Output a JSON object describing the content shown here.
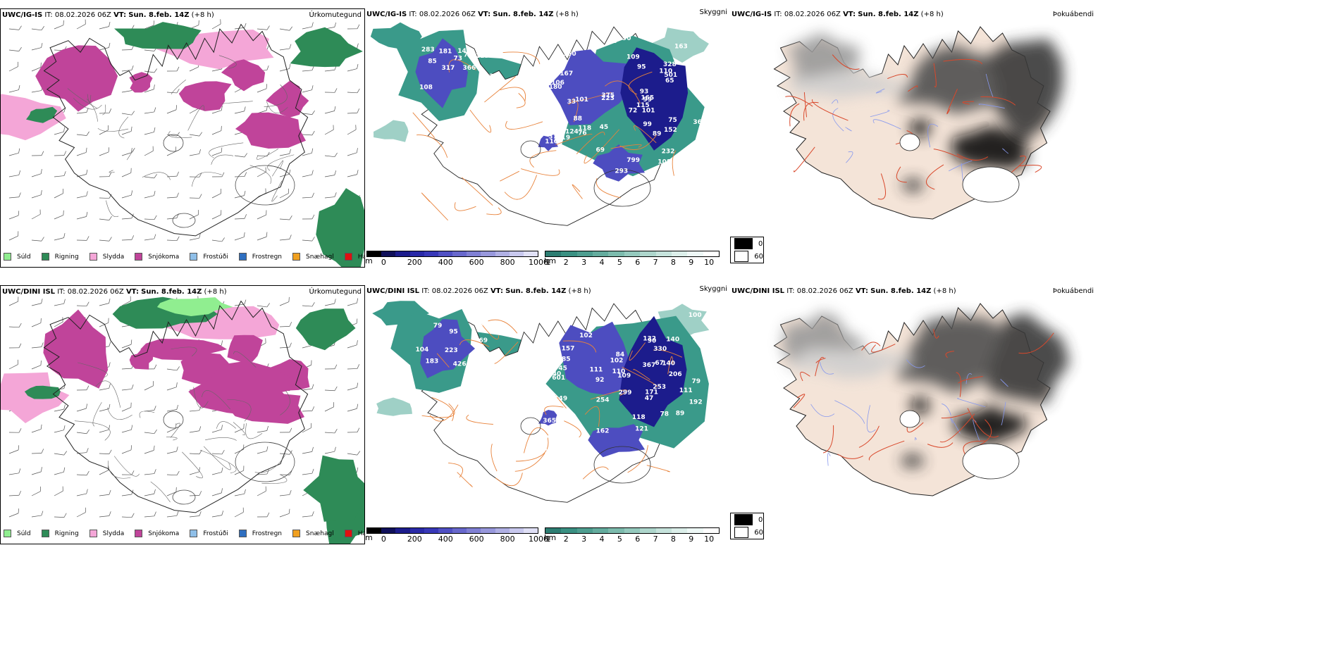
{
  "rows": [
    {
      "precip": {
        "model": "UWC/IG-IS",
        "it_label": "IT:",
        "it_value": "08.02.2026 06Z",
        "vt_label": "VT:",
        "vt_value": "Sun. 8.feb. 14Z",
        "lead": "(+8 h)",
        "right_title": "Úrkomutegund"
      },
      "visibility": {
        "model": "UWC/IG-IS",
        "it_label": "IT:",
        "it_value": "08.02.2026 06Z",
        "vt_label": "VT:",
        "vt_value": "Sun. 8.feb. 14Z",
        "lead": "(+8 h)",
        "right_title": "Skyggni"
      },
      "fog": {
        "model": "UWC/IG-IS",
        "it_label": "IT:",
        "it_value": "08.02.2026 06Z",
        "vt_label": "VT:",
        "vt_value": "Sun. 8.feb. 14Z",
        "lead": "(+8 h)",
        "right_title": "Þokuábendi"
      },
      "labels": [
        "108",
        "143",
        "85",
        "366",
        "181",
        "73",
        "125",
        "317",
        "74",
        "51",
        "283",
        "322",
        "88",
        "232",
        "165",
        "110",
        "152",
        "180",
        "65",
        "86",
        "99",
        "89",
        "106",
        "101",
        "350",
        "52",
        "375",
        "90",
        "108",
        "118",
        "373",
        "69",
        "72",
        "33",
        "65",
        "93",
        "124",
        "369",
        "75",
        "45",
        "109",
        "223",
        "119",
        "293",
        "501",
        "328",
        "419",
        "101",
        "115",
        "99",
        "167",
        "125",
        "799",
        "163",
        "76",
        "132",
        "95",
        "110"
      ]
    },
    {
      "precip": {
        "model": "UWC/DINI ISL",
        "it_label": "IT:",
        "it_value": "08.02.2026 06Z",
        "vt_label": "VT:",
        "vt_value": "Sun. 8.feb. 14Z",
        "lead": "(+8 h)",
        "right_title": "Úrkomutegund"
      },
      "visibility": {
        "model": "UWC/DINI ISL",
        "it_label": "IT:",
        "it_value": "08.02.2026 06Z",
        "vt_label": "VT:",
        "vt_value": "Sun. 8.feb. 14Z",
        "lead": "(+8 h)",
        "right_title": "Skyggni"
      },
      "fog": {
        "model": "UWC/DINI ISL",
        "it_label": "IT:",
        "it_value": "08.02.2026 06Z",
        "vt_label": "VT:",
        "vt_value": "Sun. 8.feb. 14Z",
        "lead": "(+8 h)",
        "right_title": "Þokuábendi"
      },
      "labels": [
        "352",
        "147",
        "104",
        "95",
        "426",
        "390",
        "97",
        "183",
        "223",
        "79",
        "69",
        "310",
        "40",
        "102",
        "62",
        "78",
        "109",
        "111",
        "84",
        "79",
        "89",
        "171",
        "192",
        "90",
        "121",
        "140",
        "157",
        "367",
        "111",
        "132",
        "149",
        "105",
        "102",
        "162",
        "321",
        "100",
        "67",
        "253",
        "254",
        "299",
        "63",
        "45",
        "365",
        "601",
        "118",
        "330",
        "110",
        "131",
        "206",
        "92",
        "140",
        "47",
        "220",
        "85"
      ]
    }
  ],
  "precip_legend": [
    {
      "label": "Súld",
      "color": "#90ee90"
    },
    {
      "label": "Rigning",
      "color": "#2e8b57"
    },
    {
      "label": "Slydda",
      "color": "#f4a6d7"
    },
    {
      "label": "Snjókoma",
      "color": "#c0449a"
    },
    {
      "label": "Frostúði",
      "color": "#8fbfe8"
    },
    {
      "label": "Frostregn",
      "color": "#2f6fc0"
    },
    {
      "label": "Snæhagl",
      "color": "#f0a020"
    },
    {
      "label": "Haglél",
      "color": "#e01010"
    }
  ],
  "depth_scale": {
    "unit": "m",
    "ticks": [
      "0",
      "200",
      "400",
      "600",
      "800",
      "1000"
    ]
  },
  "km_scale": {
    "unit": "km",
    "ticks": [
      "1",
      "2",
      "3",
      "4",
      "5",
      "6",
      "7",
      "8",
      "9",
      "10"
    ]
  },
  "fog_key": [
    {
      "label": "0",
      "color": "#000000"
    },
    {
      "label": "60",
      "color": "#ffffff"
    }
  ],
  "colors": {
    "rain": "#2e8b57",
    "drizzle": "#90ee90",
    "sleet": "#f4a6d7",
    "snow": "#c0449a",
    "vis_low": "#1c1c8c",
    "vis_mid": "#4d4dc0",
    "teal": "#3a9a8a",
    "teal_light": "#9fd0c6",
    "road": "#e8823a",
    "land": "#f4e4d8",
    "river": "#8899ee",
    "red_road": "#d9482b"
  }
}
